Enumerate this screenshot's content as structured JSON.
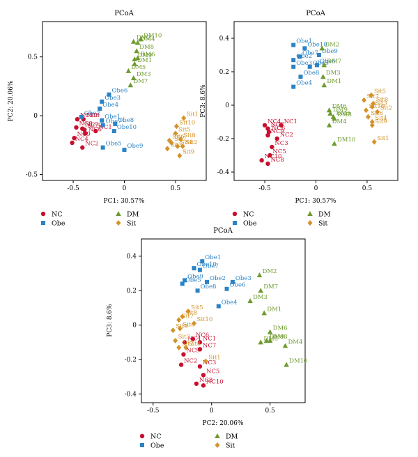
{
  "colors": {
    "NC": "#c8102e",
    "Obe": "#2b83c6",
    "DM": "#6e9b2e",
    "Sit": "#d4922a"
  },
  "groups": [
    {
      "key": "NC",
      "marker": "circle"
    },
    {
      "key": "Obe",
      "marker": "square"
    },
    {
      "key": "DM",
      "marker": "triangle"
    },
    {
      "key": "Sit",
      "marker": "diamond"
    }
  ],
  "chart_data": [
    {
      "type": "scatter",
      "title": "PCoA",
      "xlabel": "PC1: 30.57%",
      "ylabel": "PC2: 20.06%",
      "xlim": [
        -0.8,
        0.8
      ],
      "ylim": [
        -0.55,
        0.8
      ],
      "xticks": [
        -0.5,
        0,
        0.5
      ],
      "yticks": [
        -0.5,
        0,
        0.5
      ],
      "legend": "bottom",
      "series": [
        {
          "name": "NC",
          "points": [
            {
              "label": "NC1",
              "x": -0.28,
              "y": -0.13
            },
            {
              "label": "NC2",
              "x": -0.41,
              "y": -0.27
            },
            {
              "label": "NC3",
              "x": -0.4,
              "y": -0.03
            },
            {
              "label": "NC4",
              "x": -0.51,
              "y": -0.23
            },
            {
              "label": "NC5",
              "x": -0.39,
              "y": -0.12
            },
            {
              "label": "NC6",
              "x": -0.38,
              "y": -0.15
            },
            {
              "label": "NC7",
              "x": -0.41,
              "y": -0.11
            },
            {
              "label": "NC8",
              "x": -0.47,
              "y": -0.1
            },
            {
              "label": "NC9",
              "x": -0.49,
              "y": -0.19
            },
            {
              "label": "NC10",
              "x": -0.46,
              "y": -0.03
            }
          ]
        },
        {
          "name": "Obe",
          "points": [
            {
              "label": "Obe1",
              "x": -0.22,
              "y": -0.04
            },
            {
              "label": "Obe2",
              "x": -0.42,
              "y": -0.01
            },
            {
              "label": "Obe3",
              "x": -0.22,
              "y": 0.12
            },
            {
              "label": "Obe4",
              "x": -0.24,
              "y": 0.06
            },
            {
              "label": "Obe5",
              "x": -0.21,
              "y": -0.27
            },
            {
              "label": "Obe6",
              "x": -0.15,
              "y": 0.18
            },
            {
              "label": "Obe7",
              "x": -0.21,
              "y": -0.08
            },
            {
              "label": "Obe8",
              "x": -0.09,
              "y": -0.07
            },
            {
              "label": "Obe9",
              "x": 0.0,
              "y": -0.29
            },
            {
              "label": "Obe10",
              "x": -0.1,
              "y": -0.13
            }
          ]
        },
        {
          "name": "DM",
          "points": [
            {
              "label": "DM1",
              "x": 0.1,
              "y": 0.44
            },
            {
              "label": "DM2",
              "x": 0.09,
              "y": 0.63
            },
            {
              "label": "DM3",
              "x": 0.09,
              "y": 0.32
            },
            {
              "label": "DM4",
              "x": 0.13,
              "y": 0.62
            },
            {
              "label": "DM5",
              "x": 0.04,
              "y": 0.38
            },
            {
              "label": "DM6",
              "x": 0.13,
              "y": 0.49
            },
            {
              "label": "DM7",
              "x": 0.06,
              "y": 0.26
            },
            {
              "label": "DM8",
              "x": 0.12,
              "y": 0.55
            },
            {
              "label": "DM9",
              "x": 0.1,
              "y": 0.48
            },
            {
              "label": "DM10",
              "x": 0.16,
              "y": 0.65
            }
          ]
        },
        {
          "name": "Sit",
          "points": [
            {
              "label": "Sit1",
              "x": 0.58,
              "y": -0.02
            },
            {
              "label": "Sit2",
              "x": 0.57,
              "y": -0.26
            },
            {
              "label": "Sit3",
              "x": 0.42,
              "y": -0.28
            },
            {
              "label": "Sit4",
              "x": 0.52,
              "y": -0.26
            },
            {
              "label": "Sit5",
              "x": 0.5,
              "y": -0.15
            },
            {
              "label": "Sit6",
              "x": 0.44,
              "y": -0.21
            },
            {
              "label": "Sit7",
              "x": 0.46,
              "y": -0.23
            },
            {
              "label": "Sit8",
              "x": 0.55,
              "y": -0.2
            },
            {
              "label": "Sit9",
              "x": 0.54,
              "y": -0.34
            },
            {
              "label": "Sit10",
              "x": 0.51,
              "y": -0.09
            }
          ]
        }
      ]
    },
    {
      "type": "scatter",
      "title": "",
      "xlabel": "PC1: 30.57%",
      "ylabel": "PC3: 8.6%",
      "xlim": [
        -0.8,
        0.8
      ],
      "ylim": [
        -0.45,
        0.5
      ],
      "xticks": [
        -0.5,
        0,
        0.5
      ],
      "yticks": [
        -0.4,
        -0.2,
        0,
        0.2,
        0.4
      ],
      "legend": "bottom",
      "series": [
        {
          "name": "NC",
          "points": [
            {
              "label": "NC1",
              "x": -0.34,
              "y": -0.12
            },
            {
              "label": "NC2",
              "x": -0.38,
              "y": -0.2
            },
            {
              "label": "NC3",
              "x": -0.43,
              "y": -0.25
            },
            {
              "label": "NC4",
              "x": -0.5,
              "y": -0.12
            },
            {
              "label": "NC5",
              "x": -0.45,
              "y": -0.3
            },
            {
              "label": "NC6",
              "x": -0.46,
              "y": -0.16
            },
            {
              "label": "NC7",
              "x": -0.47,
              "y": -0.14
            },
            {
              "label": "NC8",
              "x": -0.47,
              "y": -0.35
            },
            {
              "label": "NC9",
              "x": -0.47,
              "y": -0.18
            },
            {
              "label": "NC10",
              "x": -0.53,
              "y": -0.33
            }
          ]
        },
        {
          "name": "Obe",
          "points": [
            {
              "label": "Obe1",
              "x": -0.22,
              "y": 0.36
            },
            {
              "label": "Obe2",
              "x": -0.22,
              "y": 0.27
            },
            {
              "label": "Obe3",
              "x": -0.22,
              "y": 0.23
            },
            {
              "label": "Obe4",
              "x": -0.22,
              "y": 0.11
            },
            {
              "label": "Obe5",
              "x": -0.06,
              "y": 0.23
            },
            {
              "label": "Obe6",
              "x": 0.01,
              "y": 0.24
            },
            {
              "label": "Obe7",
              "x": -0.16,
              "y": 0.29
            },
            {
              "label": "Obe8",
              "x": -0.15,
              "y": 0.17
            },
            {
              "label": "Obe9",
              "x": 0.03,
              "y": 0.3
            },
            {
              "label": "Obe10",
              "x": -0.11,
              "y": 0.34
            }
          ]
        },
        {
          "name": "DM",
          "points": [
            {
              "label": "DM1",
              "x": 0.08,
              "y": 0.12
            },
            {
              "label": "DM2",
              "x": 0.06,
              "y": 0.34
            },
            {
              "label": "DM3",
              "x": 0.07,
              "y": 0.17
            },
            {
              "label": "DM4",
              "x": 0.13,
              "y": -0.12
            },
            {
              "label": "DM5",
              "x": 0.17,
              "y": -0.07
            },
            {
              "label": "DM6",
              "x": 0.13,
              "y": -0.03
            },
            {
              "label": "DM7",
              "x": 0.08,
              "y": 0.24
            },
            {
              "label": "DM8",
              "x": 0.18,
              "y": -0.08
            },
            {
              "label": "DM9",
              "x": 0.14,
              "y": -0.05
            },
            {
              "label": "DM10",
              "x": 0.18,
              "y": -0.23
            }
          ]
        },
        {
          "name": "Sit",
          "points": [
            {
              "label": "Sit1",
              "x": 0.57,
              "y": -0.22
            },
            {
              "label": "Sit2",
              "x": 0.6,
              "y": -0.04
            },
            {
              "label": "Sit3",
              "x": 0.55,
              "y": -0.01
            },
            {
              "label": "Sit4",
              "x": 0.55,
              "y": -0.1
            },
            {
              "label": "Sit5",
              "x": 0.54,
              "y": 0.06
            },
            {
              "label": "Sit6",
              "x": 0.51,
              "y": -0.07
            },
            {
              "label": "Sit7",
              "x": 0.47,
              "y": 0.03
            },
            {
              "label": "Sit8",
              "x": 0.56,
              "y": 0.01
            },
            {
              "label": "Sit9",
              "x": 0.55,
              "y": -0.12
            },
            {
              "label": "Sit10",
              "x": 0.49,
              "y": -0.03
            }
          ]
        }
      ]
    },
    {
      "type": "scatter",
      "title": "PCoA",
      "xlabel": "PC2: 20.06%",
      "ylabel": "PC3: 8.6%",
      "xlim": [
        -0.6,
        0.8
      ],
      "ylim": [
        -0.45,
        0.5
      ],
      "xticks": [
        -0.5,
        0,
        0.5
      ],
      "yticks": [
        -0.4,
        -0.2,
        0,
        0.2,
        0.4
      ],
      "legend": "bottom",
      "series": [
        {
          "name": "NC",
          "points": [
            {
              "label": "NC1",
              "x": -0.1,
              "y": -0.1
            },
            {
              "label": "NC2",
              "x": -0.26,
              "y": -0.23
            },
            {
              "label": "NC3",
              "x": -0.1,
              "y": -0.24
            },
            {
              "label": "NC4",
              "x": -0.23,
              "y": -0.1
            },
            {
              "label": "NC5",
              "x": -0.07,
              "y": -0.29
            },
            {
              "label": "NC6",
              "x": -0.16,
              "y": -0.08
            },
            {
              "label": "NC7",
              "x": -0.1,
              "y": -0.14
            },
            {
              "label": "NC8",
              "x": -0.13,
              "y": -0.34
            },
            {
              "label": "NC9",
              "x": -0.24,
              "y": -0.17
            },
            {
              "label": "NC10",
              "x": -0.07,
              "y": -0.35
            }
          ]
        },
        {
          "name": "Obe",
          "points": [
            {
              "label": "Obe1",
              "x": -0.08,
              "y": 0.37
            },
            {
              "label": "Obe2",
              "x": -0.04,
              "y": 0.25
            },
            {
              "label": "Obe3",
              "x": 0.18,
              "y": 0.25
            },
            {
              "label": "Obe4",
              "x": 0.06,
              "y": 0.11
            },
            {
              "label": "Obe5",
              "x": -0.25,
              "y": 0.24
            },
            {
              "label": "Obe6",
              "x": 0.13,
              "y": 0.21
            },
            {
              "label": "Obe7",
              "x": -0.1,
              "y": 0.32
            },
            {
              "label": "Obe8",
              "x": -0.12,
              "y": 0.2
            },
            {
              "label": "Obe9",
              "x": -0.23,
              "y": 0.26
            },
            {
              "label": "Obe10",
              "x": -0.15,
              "y": 0.33
            }
          ]
        },
        {
          "name": "DM",
          "points": [
            {
              "label": "DM1",
              "x": 0.45,
              "y": 0.07
            },
            {
              "label": "DM2",
              "x": 0.41,
              "y": 0.29
            },
            {
              "label": "DM3",
              "x": 0.33,
              "y": 0.14
            },
            {
              "label": "DM4",
              "x": 0.63,
              "y": -0.12
            },
            {
              "label": "DM5",
              "x": 0.42,
              "y": -0.1
            },
            {
              "label": "DM6",
              "x": 0.5,
              "y": -0.04
            },
            {
              "label": "DM7",
              "x": 0.42,
              "y": 0.2
            },
            {
              "label": "DM8",
              "x": 0.5,
              "y": -0.09
            },
            {
              "label": "DM9",
              "x": 0.47,
              "y": -0.09
            },
            {
              "label": "DM10",
              "x": 0.64,
              "y": -0.23
            }
          ]
        },
        {
          "name": "Sit",
          "points": [
            {
              "label": "Sit1",
              "x": -0.05,
              "y": -0.21
            },
            {
              "label": "Sit2",
              "x": -0.28,
              "y": -0.13
            },
            {
              "label": "Sit3",
              "x": -0.31,
              "y": -0.09
            },
            {
              "label": "Sit4",
              "x": -0.22,
              "y": -0.13
            },
            {
              "label": "Sit5",
              "x": -0.2,
              "y": 0.08
            },
            {
              "label": "Sit6",
              "x": -0.27,
              "y": -0.02
            },
            {
              "label": "Sit7",
              "x": -0.28,
              "y": 0.03
            },
            {
              "label": "Sit8",
              "x": -0.25,
              "y": 0.05
            },
            {
              "label": "Sit9",
              "x": -0.33,
              "y": -0.03
            },
            {
              "label": "Sit10",
              "x": -0.15,
              "y": 0.01
            }
          ]
        }
      ]
    }
  ]
}
